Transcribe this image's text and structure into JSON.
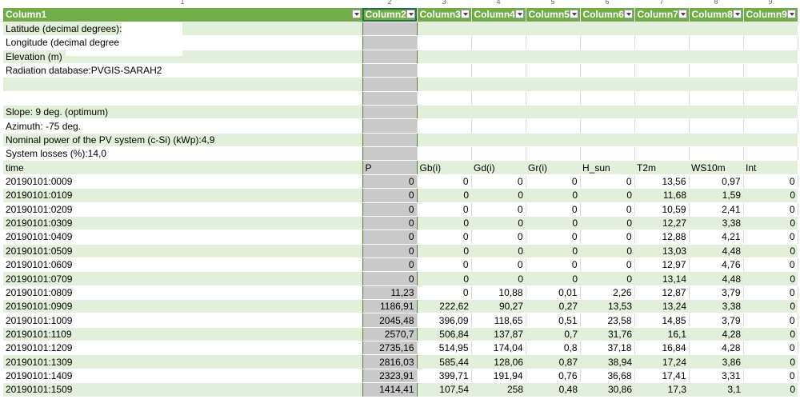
{
  "col_numbers": [
    "1",
    "2",
    "3",
    "4",
    "5",
    "6",
    "7",
    "8",
    "9"
  ],
  "headers": [
    "Column1",
    "Column2",
    "Column3",
    "Column4",
    "Column5",
    "Column6",
    "Column7",
    "Column8",
    "Column9"
  ],
  "meta_rows": [
    {
      "text": "Latitude (decimal degrees):",
      "style": "g"
    },
    {
      "text": "Longitude (decimal degree",
      "style": "w"
    },
    {
      "text": "Elevation (m)",
      "style": "g"
    },
    {
      "text": "Radiation database:PVGIS-SARAH2",
      "style": "w"
    },
    {
      "text": "",
      "style": "g"
    },
    {
      "text": "",
      "style": "w"
    },
    {
      "text": "Slope: 9 deg. (optimum)",
      "style": "g"
    },
    {
      "text": "Azimuth: -75 deg.",
      "style": "w"
    },
    {
      "text": "Nominal power of the PV system (c-Si) (kWp):4,9",
      "style": "g"
    },
    {
      "text": "System losses (%):14,0",
      "style": "w"
    }
  ],
  "field_headers": [
    "time",
    "P",
    "Gb(i)",
    "Gd(i)",
    "Gr(i)",
    "H_sun",
    "T2m",
    "WS10m",
    "Int"
  ],
  "data_rows": [
    [
      "20190101:0009",
      "0",
      "0",
      "0",
      "0",
      "0",
      "13,56",
      "0,97",
      "0"
    ],
    [
      "20190101:0109",
      "0",
      "0",
      "0",
      "0",
      "0",
      "11,68",
      "1,59",
      "0"
    ],
    [
      "20190101:0209",
      "0",
      "0",
      "0",
      "0",
      "0",
      "10,59",
      "2,41",
      "0"
    ],
    [
      "20190101:0309",
      "0",
      "0",
      "0",
      "0",
      "0",
      "12,27",
      "3,38",
      "0"
    ],
    [
      "20190101:0409",
      "0",
      "0",
      "0",
      "0",
      "0",
      "12,88",
      "4,21",
      "0"
    ],
    [
      "20190101:0509",
      "0",
      "0",
      "0",
      "0",
      "0",
      "13,03",
      "4,48",
      "0"
    ],
    [
      "20190101:0609",
      "0",
      "0",
      "0",
      "0",
      "0",
      "12,97",
      "4,76",
      "0"
    ],
    [
      "20190101:0709",
      "0",
      "0",
      "0",
      "0",
      "0",
      "13,14",
      "4,48",
      "0"
    ],
    [
      "20190101:0809",
      "11,23",
      "0",
      "10,88",
      "0,01",
      "2,26",
      "12,87",
      "3,79",
      "0"
    ],
    [
      "20190101:0909",
      "1186,91",
      "222,62",
      "90,27",
      "0,27",
      "13,53",
      "13,24",
      "3,38",
      "0"
    ],
    [
      "20190101:1009",
      "2045,48",
      "396,09",
      "118,65",
      "0,51",
      "23,58",
      "14,85",
      "3,79",
      "0"
    ],
    [
      "20190101:1109",
      "2570,7",
      "506,84",
      "137,87",
      "0,7",
      "31,76",
      "16,1",
      "4,28",
      "0"
    ],
    [
      "20190101:1209",
      "2735,16",
      "514,95",
      "174,04",
      "0,8",
      "37,18",
      "16,84",
      "4,28",
      "0"
    ],
    [
      "20190101:1309",
      "2816,03",
      "585,44",
      "128,06",
      "0,87",
      "38,94",
      "17,24",
      "3,86",
      "0"
    ],
    [
      "20190101:1409",
      "2323,91",
      "399,71",
      "191,94",
      "0,76",
      "36,68",
      "17,41",
      "3,31",
      "0"
    ],
    [
      "20190101:1509",
      "1414,41",
      "107,54",
      "258",
      "0,48",
      "30,86",
      "17,3",
      "3,1",
      "0"
    ]
  ]
}
